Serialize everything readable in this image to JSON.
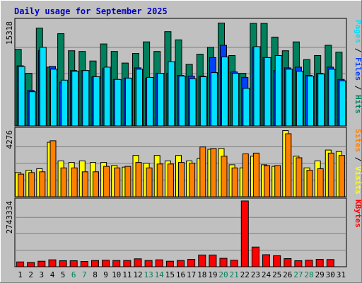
{
  "chart_data": {
    "type": "bar",
    "title": "Daily usage for September 2025",
    "days": [
      "1",
      "2",
      "3",
      "4",
      "5",
      "6",
      "7",
      "8",
      "9",
      "10",
      "11",
      "12",
      "13",
      "14",
      "15",
      "16",
      "17",
      "18",
      "19",
      "20",
      "21",
      "22",
      "23",
      "24",
      "25",
      "26",
      "27",
      "28",
      "29",
      "30",
      "31"
    ],
    "weekend_days": [
      6,
      7,
      13,
      14,
      20,
      21,
      27,
      28
    ],
    "colors": {
      "background": "#c0c0c0",
      "plot": "#c0c0c0",
      "border": "#000000",
      "title": "#0000c0",
      "hits": "#00805c",
      "files": "#0040ff",
      "pages": "#00e0ff",
      "visits": "#ffff00",
      "sites": "#ff8000",
      "kbytes": "#ff0000",
      "weekend_label": "#00805c",
      "day_label": "#000000",
      "gridline": "#808080"
    },
    "panels": [
      {
        "id": "hits-files-pages",
        "max_label": "15318",
        "max": 15318,
        "legend": [
          {
            "text": "Pages",
            "color": "#00e0ff"
          },
          {
            "text": " / ",
            "color": "#000000"
          },
          {
            "text": "Files",
            "color": "#0040ff"
          },
          {
            "text": " / ",
            "color": "#000000"
          },
          {
            "text": "Hits",
            "color": "#00805c"
          }
        ],
        "series": [
          {
            "name": "Hits",
            "color": "#00805c",
            "values": [
              11200,
              7700,
              14300,
              8600,
              13500,
              11000,
              10900,
              9500,
              12000,
              10900,
              9200,
              10600,
              12300,
              10900,
              13800,
              12600,
              9000,
              10500,
              11500,
              15050,
              10300,
              7700,
              15000,
              15000,
              13000,
              11000,
              12300,
              9700,
              10300,
              11800,
              10800
            ]
          },
          {
            "text": "",
            "name": "Files",
            "color": "#0040ff",
            "values": [
              8800,
              5200,
              11000,
              8700,
              6400,
              8100,
              8100,
              7200,
              8400,
              6800,
              7000,
              8500,
              7000,
              7700,
              7700,
              7400,
              7300,
              7300,
              10000,
              11800,
              7900,
              7100,
              11500,
              10000,
              8100,
              8500,
              8600,
              7400,
              7700,
              8600,
              6800
            ]
          },
          {
            "name": "Pages",
            "color": "#00e0ff",
            "values": [
              8700,
              5000,
              11500,
              8300,
              6700,
              8000,
              8100,
              7200,
              8600,
              6800,
              7000,
              8300,
              7100,
              7700,
              9400,
              7300,
              6900,
              7200,
              7800,
              10100,
              7700,
              5500,
              11600,
              10000,
              10300,
              8300,
              8000,
              7300,
              7600,
              8300,
              6600
            ]
          }
        ]
      },
      {
        "id": "visits-sites",
        "max_label": "4276",
        "max": 4276,
        "legend": [
          {
            "text": "Sites",
            "color": "#ff8000"
          },
          {
            "text": " / ",
            "color": "#000000"
          },
          {
            "text": "Visits",
            "color": "#ffff00"
          }
        ],
        "series": [
          {
            "name": "Visits",
            "color": "#ffff00",
            "values": [
              1550,
              1700,
              1800,
              3500,
              2300,
              2200,
              2300,
              2200,
              2200,
              2000,
              1900,
              2650,
              2150,
              2650,
              2300,
              2650,
              2300,
              2450,
              3050,
              3100,
              2050,
              1850,
              2600,
              2050,
              1950,
              4250,
              2600,
              1850,
              2300,
              3000,
              2900
            ]
          },
          {
            "name": "Sites",
            "color": "#ff8000",
            "values": [
              1450,
              1550,
              1600,
              3600,
              1850,
              1850,
              1600,
              1600,
              1950,
              1850,
              1950,
              2200,
              1850,
              2100,
              2100,
              2200,
              2150,
              3200,
              3100,
              2600,
              1850,
              2750,
              2800,
              2000,
              2000,
              4050,
              2500,
              1700,
              1800,
              2800,
              2650
            ]
          }
        ]
      },
      {
        "id": "kbytes",
        "max_label": "2743334",
        "max": 2743334,
        "legend": [
          {
            "text": "KBytes",
            "color": "#ff0000"
          }
        ],
        "series": [
          {
            "name": "KBytes",
            "color": "#ff0000",
            "values": [
              200000,
              180000,
              230000,
              290000,
              250000,
              250000,
              220000,
              260000,
              270000,
              260000,
              260000,
              330000,
              260000,
              290000,
              230000,
              260000,
              310000,
              490000,
              490000,
              350000,
              270000,
              2743334,
              820000,
              500000,
              460000,
              340000,
              250000,
              270000,
              310000,
              300000,
              0
            ]
          }
        ]
      }
    ]
  }
}
